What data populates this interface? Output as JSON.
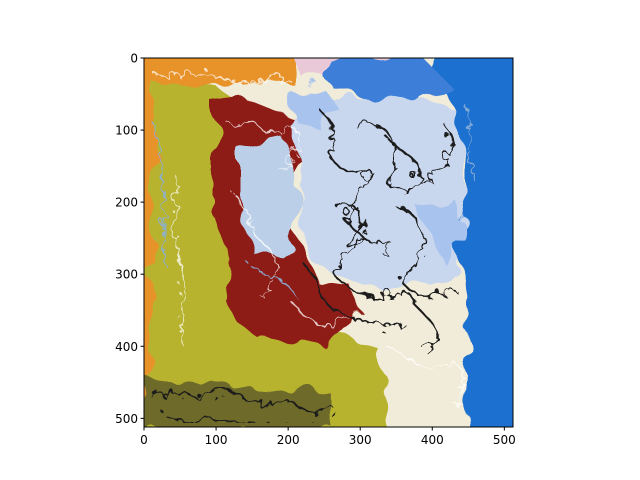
{
  "figure": {
    "image_description_name": "abstract-liquified-painting",
    "x_ticks": [
      "0",
      "100",
      "200",
      "300",
      "400",
      "500"
    ],
    "y_ticks": [
      "0",
      "100",
      "200",
      "300",
      "400",
      "500"
    ]
  },
  "chart_data": {
    "type": "heatmap",
    "title": "",
    "xlabel": "",
    "ylabel": "",
    "xlim": [
      0,
      512
    ],
    "ylim": [
      512,
      0
    ],
    "x_ticks": [
      0,
      100,
      200,
      300,
      400,
      500
    ],
    "y_ticks": [
      0,
      100,
      200,
      300,
      400,
      500
    ],
    "grid": false,
    "colors": {
      "orange": "#E8922A",
      "olive": "#B7B32E",
      "dark_olive": "#6E6A2C",
      "red": "#8E1A12",
      "blue": "#1E6FCF",
      "light_blue": "#A8C3EE",
      "cream": "#F1ECD9",
      "pink": "#E9C8D8",
      "black": "#1A1A1A"
    }
  }
}
